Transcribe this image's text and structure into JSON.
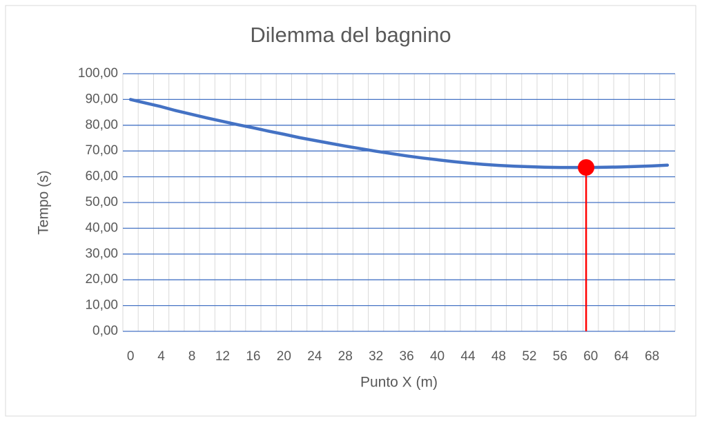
{
  "chart_data": {
    "type": "line",
    "title": "Dilemma del bagnino",
    "x_label": "Punto X (m)",
    "y_label": "Tempo (s)",
    "categories": [
      "0",
      null,
      "4",
      null,
      "8",
      null,
      "12",
      null,
      "16",
      null,
      "20",
      null,
      "24",
      null,
      "28",
      null,
      "32",
      null,
      "36",
      null,
      "40",
      null,
      "44",
      null,
      "48",
      null,
      "52",
      null,
      "56",
      null,
      "60",
      null,
      "64",
      null,
      "68",
      null
    ],
    "series": [
      {
        "name": "Tempo",
        "color": "#4472c4",
        "values": [
          90,
          88.6,
          87.2,
          85.6,
          84.2,
          82.8,
          81.5,
          80.2,
          79,
          77.7,
          76.5,
          75.2,
          74.1,
          73,
          71.9,
          70.9,
          69.9,
          69,
          68.1,
          67.3,
          66.6,
          65.9,
          65.3,
          64.8,
          64.4,
          64.1,
          63.9,
          63.7,
          63.6,
          63.6,
          63.6,
          63.7,
          63.8,
          64,
          64.2,
          64.5
        ]
      }
    ],
    "minimum": {
      "x": 59.4,
      "y": 63.6,
      "color": "#ff0000"
    },
    "ylim": [
      0,
      100
    ],
    "yticks": [
      {
        "value": 0,
        "label": "0,00"
      },
      {
        "value": 10,
        "label": "10,00"
      },
      {
        "value": 20,
        "label": "20,00"
      },
      {
        "value": 30,
        "label": "30,00"
      },
      {
        "value": 40,
        "label": "40,00"
      },
      {
        "value": 50,
        "label": "50,00"
      },
      {
        "value": 60,
        "label": "60,00"
      },
      {
        "value": 70,
        "label": "70,00"
      },
      {
        "value": 80,
        "label": "80,00"
      },
      {
        "value": 90,
        "label": "90,00"
      },
      {
        "value": 100,
        "label": "100,00"
      }
    ],
    "grid": true
  }
}
